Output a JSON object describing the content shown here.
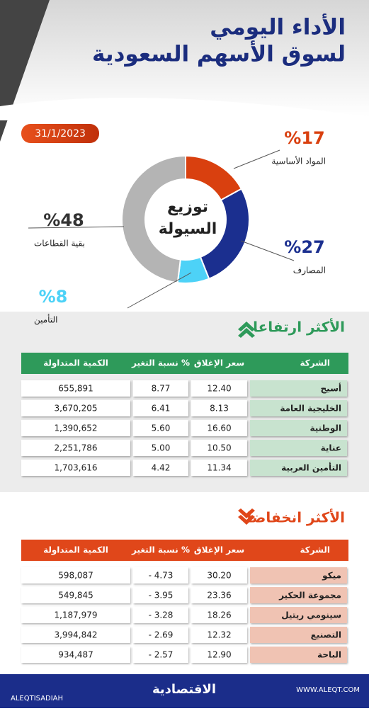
{
  "header": {
    "title_lines": [
      "الأداء اليومي",
      "لسوق الأسهم السعودية"
    ],
    "date": "31/1/2023"
  },
  "donut": {
    "center_lines": [
      "توزيع",
      "السيولة"
    ],
    "segments": [
      {
        "name": "المواد الأساسية",
        "value": 17,
        "value_label": "%17",
        "color": "#d9400f"
      },
      {
        "name": "المصارف",
        "value": 27,
        "value_label": "%27",
        "color": "#1b2f8f"
      },
      {
        "name": "التأمين",
        "value": 8,
        "value_label": "%8",
        "color": "#4dd2f7"
      },
      {
        "name": "بقية القطاعات",
        "value": 48,
        "value_label": "%48",
        "color": "#b4b4b4"
      }
    ]
  },
  "gainers": {
    "title": "الأكثر ارتفاعا",
    "headers": [
      "الشركة",
      "سعر الإغلاق",
      "نسبة التغير %",
      "الكمية المتداولة"
    ],
    "rows": [
      [
        "أسيج",
        "12.40",
        "8.77",
        "655,891"
      ],
      [
        "الخليجية العامة",
        "8.13",
        "6.41",
        "3,670,205"
      ],
      [
        "الوطنية",
        "16.60",
        "5.60",
        "1,390,652"
      ],
      [
        "عناية",
        "10.50",
        "5.00",
        "2,251,786"
      ],
      [
        "التأمين العربية",
        "11.34",
        "4.42",
        "1,703,616"
      ]
    ]
  },
  "losers": {
    "title": "الأكثر انخفاضا",
    "headers": [
      "الشركة",
      "سعر الإغلاق",
      "نسبة التغير %",
      "الكمية المتداولة"
    ],
    "rows": [
      [
        "ميكو",
        "30.20",
        "- 4.73",
        "598,087"
      ],
      [
        "مجموعة الحكير",
        "23.36",
        "- 3.95",
        "549,845"
      ],
      [
        "سينومي ريتيل",
        "18.26",
        "- 3.28",
        "1,187,979"
      ],
      [
        "التصنيع",
        "12.32",
        "- 2.69",
        "3,994,842"
      ],
      [
        "الباحة",
        "12.90",
        "- 2.57",
        "934,487"
      ]
    ]
  },
  "footer": {
    "handle": "ALEQTISADIAH",
    "brand": "الاقتصادية",
    "website": "WWW.ALEQT.COM"
  }
}
